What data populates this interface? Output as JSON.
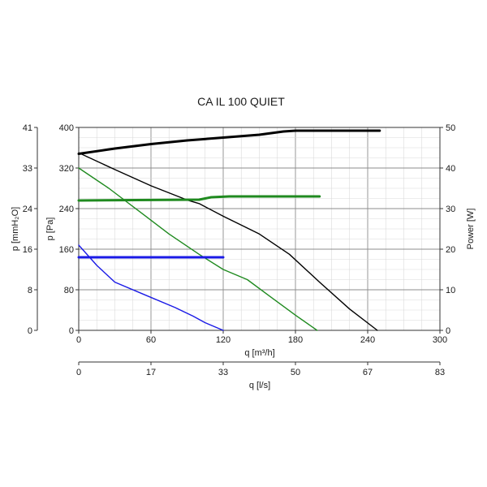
{
  "chart_data": {
    "type": "line",
    "title": "CA IL 100 QUIET",
    "xlabel": "q [m³/h]",
    "x2label": "q [l/s]",
    "ylabel": "p [Pa]",
    "y_outer_label": "p [mmH₂O]",
    "y_right_label": "Power [W]",
    "xlim": [
      0,
      300
    ],
    "ylim": [
      0,
      400
    ],
    "y_right_lim": [
      0,
      50
    ],
    "x_ticks": [
      "0",
      "60",
      "120",
      "180",
      "240",
      "300"
    ],
    "x2_ticks": [
      "0",
      "17",
      "33",
      "50",
      "67",
      "83"
    ],
    "y_ticks": [
      "0",
      "80",
      "160",
      "240",
      "320",
      "400"
    ],
    "y_outer_ticks": [
      "0",
      "8",
      "16",
      "24",
      "33",
      "41"
    ],
    "y_right_ticks": [
      "0",
      "10",
      "20",
      "30",
      "40",
      "50"
    ],
    "grid": true,
    "series": [
      {
        "kind": "pressure",
        "color": "#000000",
        "axis": "left",
        "points": [
          [
            0,
            350
          ],
          [
            30,
            317
          ],
          [
            60,
            285
          ],
          [
            90,
            257
          ],
          [
            100,
            250
          ],
          [
            120,
            225
          ],
          [
            150,
            190
          ],
          [
            175,
            150
          ],
          [
            200,
            95
          ],
          [
            225,
            42
          ],
          [
            248,
            0
          ]
        ]
      },
      {
        "kind": "pressure",
        "color": "#1f8a1f",
        "axis": "left",
        "points": [
          [
            0,
            320
          ],
          [
            25,
            280
          ],
          [
            50,
            235
          ],
          [
            75,
            190
          ],
          [
            100,
            150
          ],
          [
            120,
            120
          ],
          [
            140,
            100
          ],
          [
            160,
            65
          ],
          [
            180,
            30
          ],
          [
            198,
            0
          ]
        ]
      },
      {
        "kind": "pressure",
        "color": "#1a1ae6",
        "axis": "left",
        "points": [
          [
            0,
            168
          ],
          [
            15,
            128
          ],
          [
            30,
            95
          ],
          [
            55,
            70
          ],
          [
            80,
            45
          ],
          [
            95,
            28
          ],
          [
            105,
            15
          ],
          [
            115,
            5
          ],
          [
            120,
            0
          ]
        ]
      },
      {
        "kind": "power",
        "color": "#000000",
        "axis": "right",
        "points": [
          [
            0,
            43.5
          ],
          [
            30,
            44.8
          ],
          [
            60,
            45.9
          ],
          [
            90,
            46.8
          ],
          [
            120,
            47.5
          ],
          [
            150,
            48.2
          ],
          [
            170,
            49
          ],
          [
            180,
            49.2
          ],
          [
            250,
            49.2
          ]
        ]
      },
      {
        "kind": "power",
        "color": "#1f8a1f",
        "axis": "right",
        "points": [
          [
            0,
            32
          ],
          [
            100,
            32.2
          ],
          [
            110,
            32.8
          ],
          [
            125,
            33
          ],
          [
            200,
            33
          ]
        ]
      },
      {
        "kind": "power",
        "color": "#1a1ae6",
        "axis": "right",
        "points": [
          [
            0,
            18
          ],
          [
            120,
            18
          ]
        ]
      }
    ]
  }
}
